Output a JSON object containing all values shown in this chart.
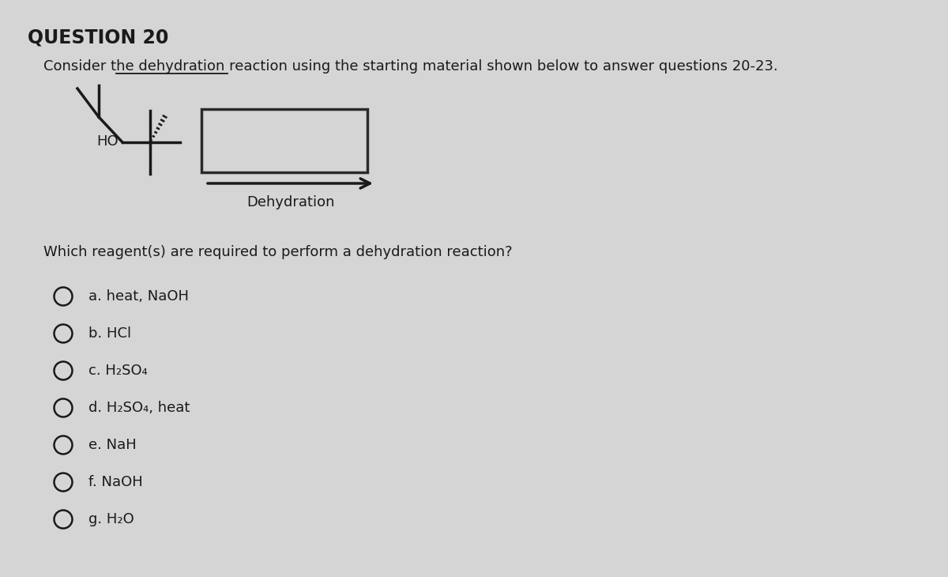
{
  "title": "QUESTION 20",
  "subtitle_part1": "Consider the ",
  "subtitle_underline": "dehydration reaction",
  "subtitle_part2": " using the starting material shown below to answer questions 20-23.",
  "question": "Which reagent(s) are required to perform a dehydration reaction?",
  "reaction_label": "Dehydration",
  "ho_label": "HO",
  "choices": [
    {
      "letter": "a",
      "text": "a. heat, NaOH"
    },
    {
      "letter": "b",
      "text": "b. HCl"
    },
    {
      "letter": "c",
      "text": "c. H₂SO₄"
    },
    {
      "letter": "d",
      "text": "d. H₂SO₄, heat"
    },
    {
      "letter": "e",
      "text": "e. NaH"
    },
    {
      "letter": "f",
      "text": "f. NaOH"
    },
    {
      "letter": "g",
      "text": "g. H₂O"
    }
  ],
  "bg_color": "#d5d5d5",
  "text_color": "#1a1a1a",
  "font_size_title": 17,
  "font_size_subtitle": 13,
  "font_size_question": 13,
  "font_size_choices": 13
}
